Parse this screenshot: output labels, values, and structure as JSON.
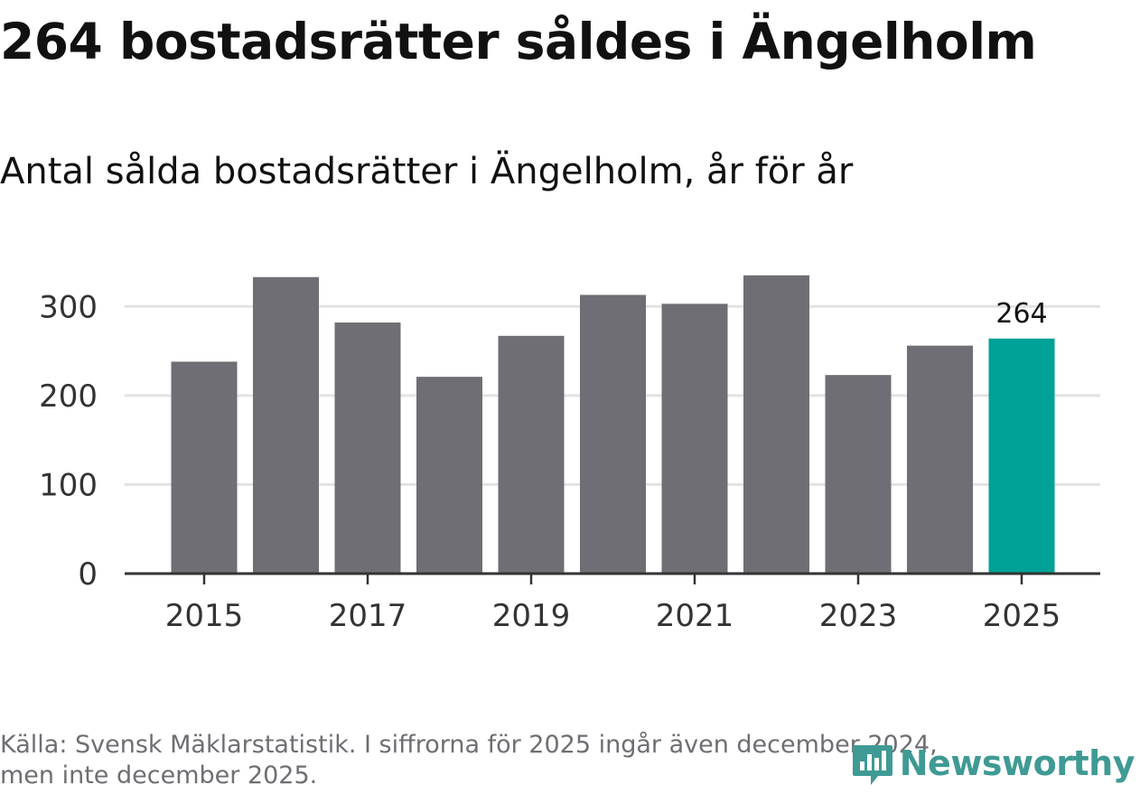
{
  "title": "264 bostadsrätter såldes i Ängelholm",
  "subtitle": "Antal sålda bostadsrätter i Ängelholm, år för år",
  "footer": {
    "line1": "Källa: Svensk Mäklarstatistik. I siffrorna för 2025 ingår även december 2024,",
    "line2": "men inte december 2025."
  },
  "brand": {
    "name": "Newsworthy",
    "color": "#3f9a94"
  },
  "colors": {
    "bar": "#6f6e74",
    "highlight": "#00a196",
    "grid": "#e2e2e2",
    "axis": "#333333",
    "text": "#333333"
  },
  "chart_data": {
    "type": "bar",
    "title": "264 bostadsrätter såldes i Ängelholm",
    "subtitle": "Antal sålda bostadsrätter i Ängelholm, år för år",
    "categories": [
      "2015",
      "2016",
      "2017",
      "2018",
      "2019",
      "2020",
      "2021",
      "2022",
      "2023",
      "2024",
      "2025"
    ],
    "values": [
      238,
      333,
      282,
      221,
      267,
      313,
      303,
      335,
      223,
      256,
      264
    ],
    "highlight_index": 10,
    "highlight_label": "264",
    "xlabel": "",
    "ylabel": "",
    "ylim": [
      0,
      350
    ],
    "yticks": [
      0,
      100,
      200,
      300
    ],
    "xtick_labels": [
      "2015",
      "2017",
      "2019",
      "2021",
      "2023",
      "2025"
    ],
    "grid": true,
    "legend": "none"
  }
}
